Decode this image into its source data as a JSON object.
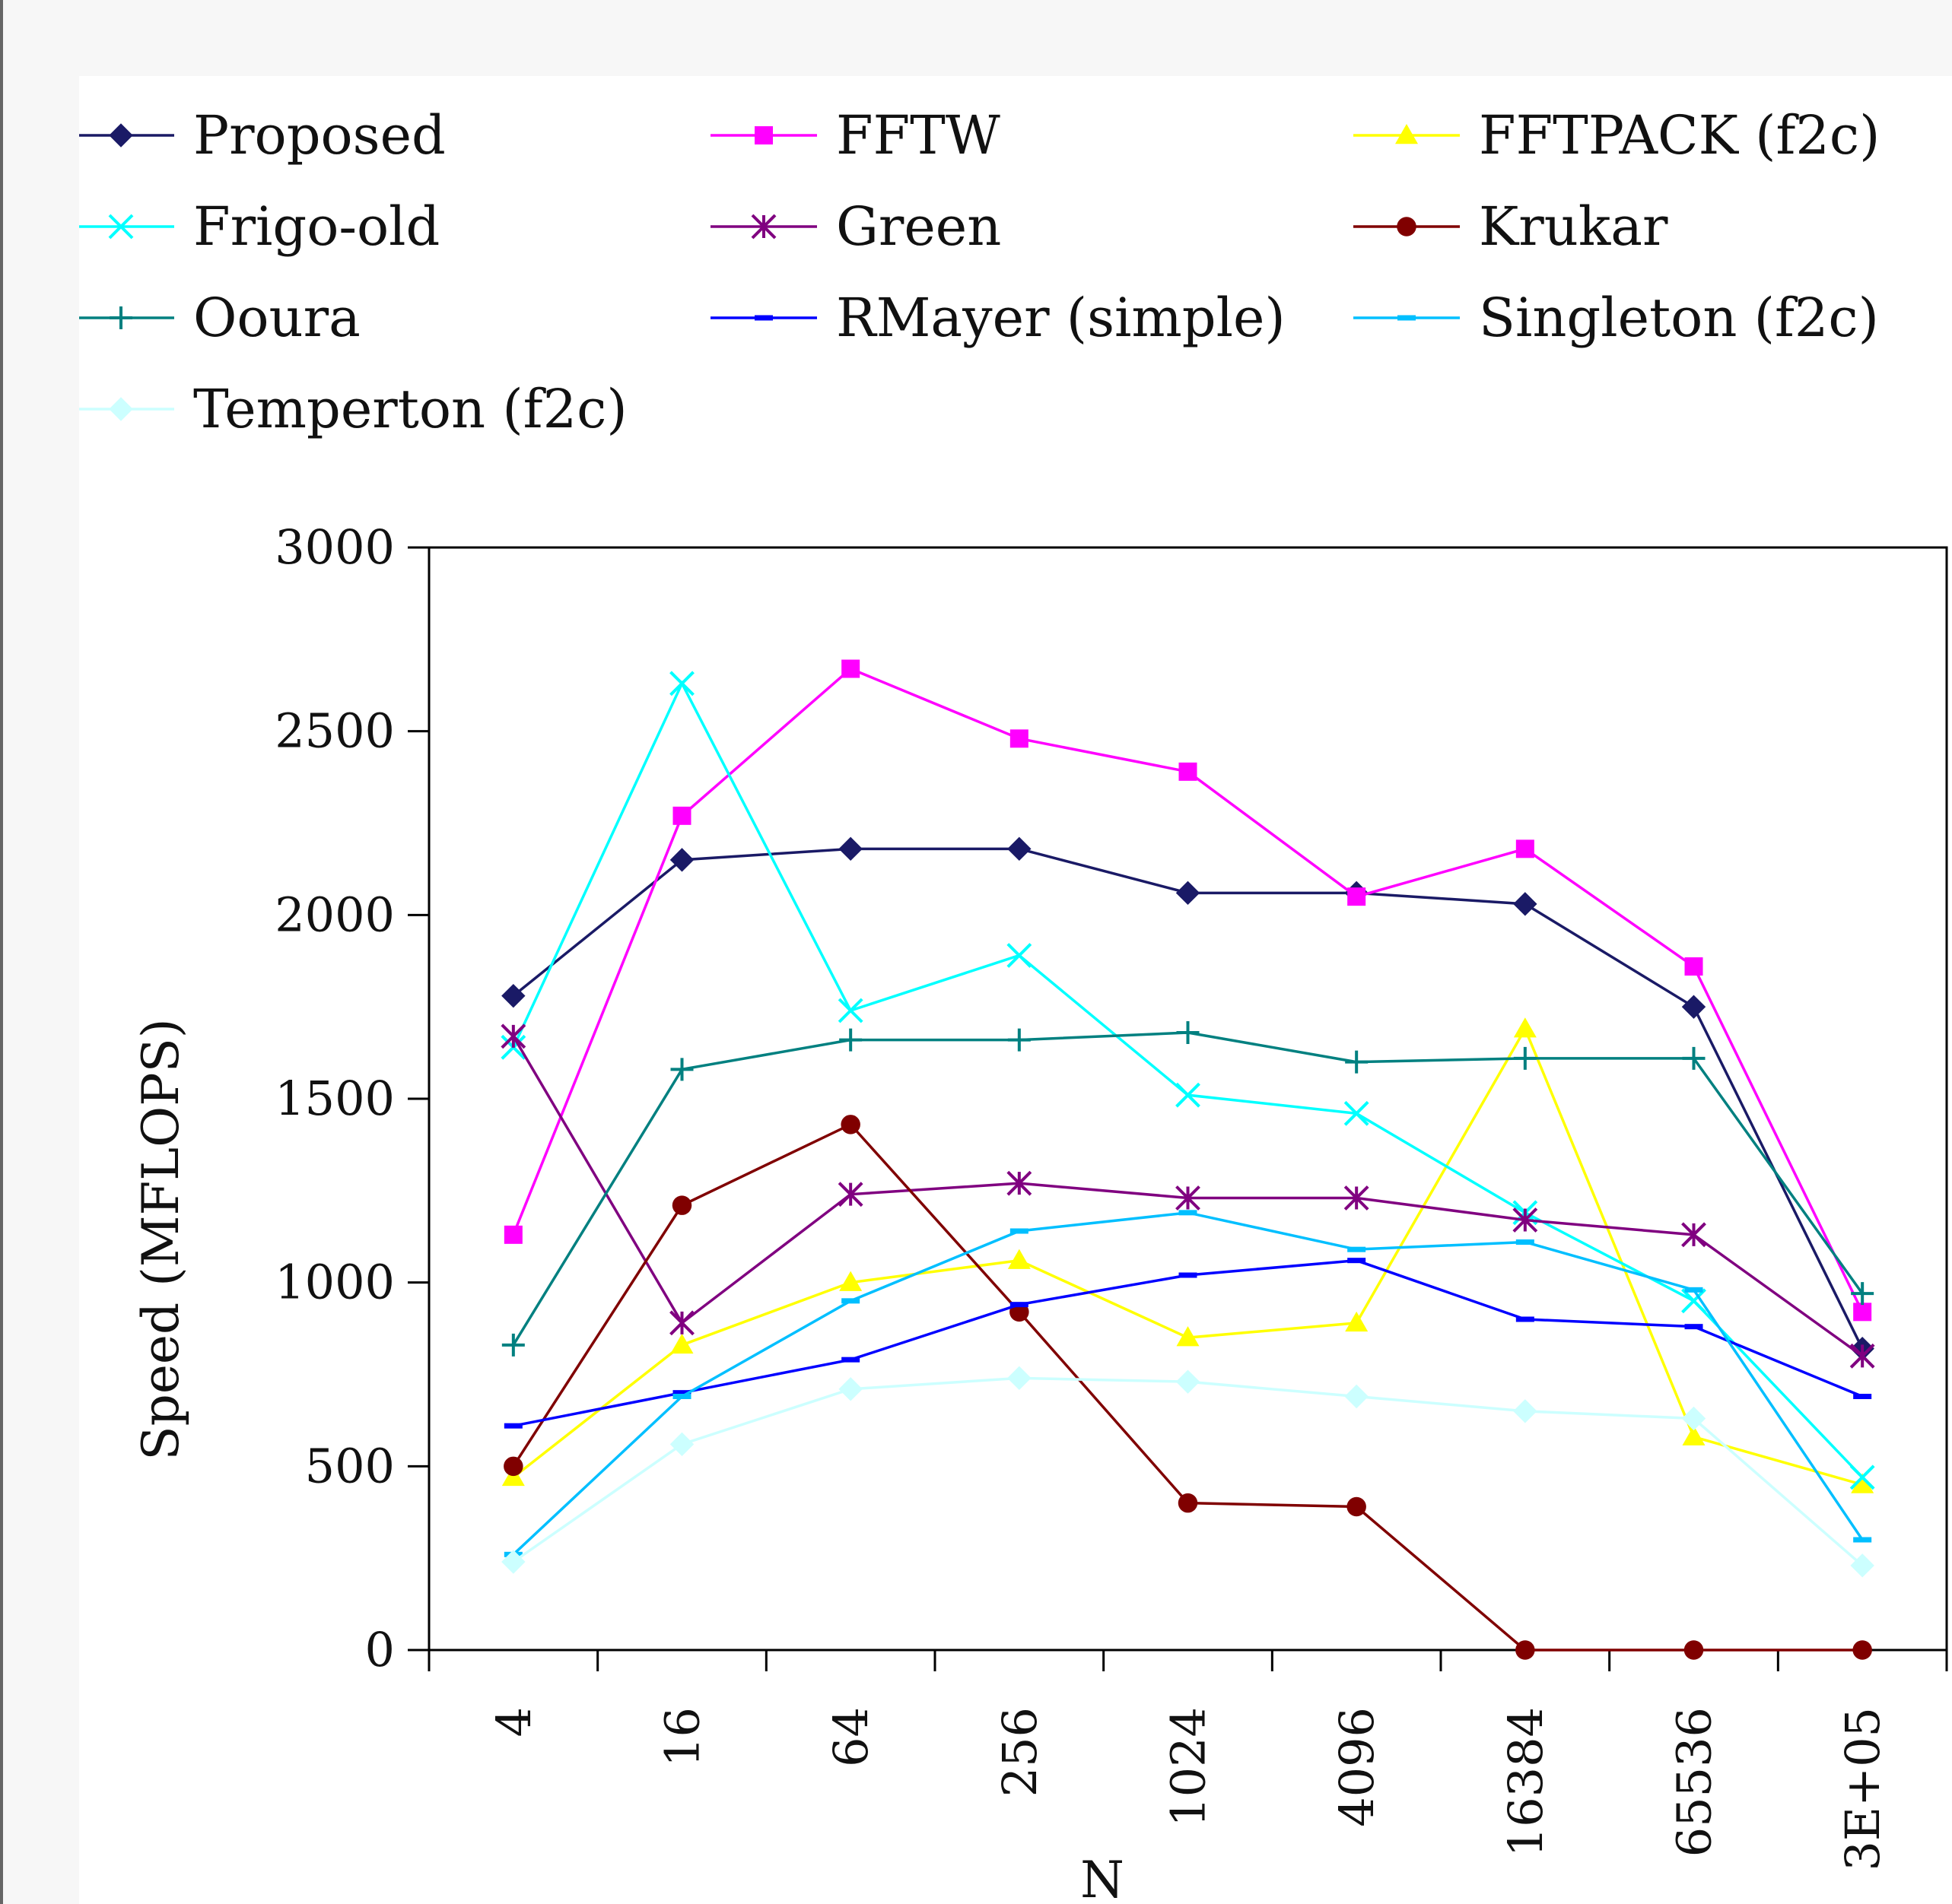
{
  "chart_data": {
    "type": "line",
    "title": "",
    "xlabel": "N",
    "ylabel": "Speed (MFLOPS)",
    "ylim": [
      0,
      3000
    ],
    "yticks": [
      "0",
      "500",
      "1000",
      "1500",
      "2000",
      "2500",
      "3000"
    ],
    "categories": [
      "4",
      "16",
      "64",
      "256",
      "1024",
      "4096",
      "16384",
      "65536",
      "3E+05"
    ],
    "grid": false,
    "legend_position": "top",
    "series": [
      {
        "name": "Proposed",
        "color": "#1a1a66",
        "marker": "diamond",
        "values": [
          1780,
          2150,
          2180,
          2180,
          2060,
          2060,
          2030,
          1750,
          820
        ]
      },
      {
        "name": "FFTW",
        "color": "#ff00ff",
        "marker": "square",
        "values": [
          1130,
          2270,
          2670,
          2480,
          2390,
          2050,
          2180,
          1860,
          920
        ]
      },
      {
        "name": "FFTPACK (f2c)",
        "color": "#ffff00",
        "marker": "triangle",
        "values": [
          470,
          830,
          1000,
          1060,
          850,
          890,
          1690,
          580,
          450
        ]
      },
      {
        "name": "Frigo-old",
        "color": "#00ffff",
        "marker": "x",
        "values": [
          1640,
          2630,
          1740,
          1890,
          1510,
          1460,
          1190,
          950,
          470
        ]
      },
      {
        "name": "Green",
        "color": "#800080",
        "marker": "star",
        "values": [
          1670,
          890,
          1240,
          1270,
          1230,
          1230,
          1170,
          1130,
          800
        ]
      },
      {
        "name": "Krukar",
        "color": "#800000",
        "marker": "circle",
        "values": [
          500,
          1210,
          1430,
          920,
          400,
          390,
          0,
          0,
          0
        ]
      },
      {
        "name": "Ooura",
        "color": "#008080",
        "marker": "plus",
        "values": [
          830,
          1580,
          1660,
          1660,
          1680,
          1600,
          1610,
          1610,
          970
        ]
      },
      {
        "name": "RMayer (simple)",
        "color": "#0000ff",
        "marker": "dash",
        "values": [
          610,
          700,
          790,
          940,
          1020,
          1060,
          900,
          880,
          690
        ]
      },
      {
        "name": "Singleton (f2c)",
        "color": "#00bfff",
        "marker": "dash",
        "values": [
          260,
          690,
          950,
          1140,
          1190,
          1090,
          1110,
          980,
          300
        ]
      },
      {
        "name": "Temperton (f2c)",
        "color": "#ccffff",
        "marker": "diamond",
        "values": [
          240,
          560,
          710,
          740,
          730,
          690,
          650,
          630,
          230
        ]
      }
    ]
  }
}
